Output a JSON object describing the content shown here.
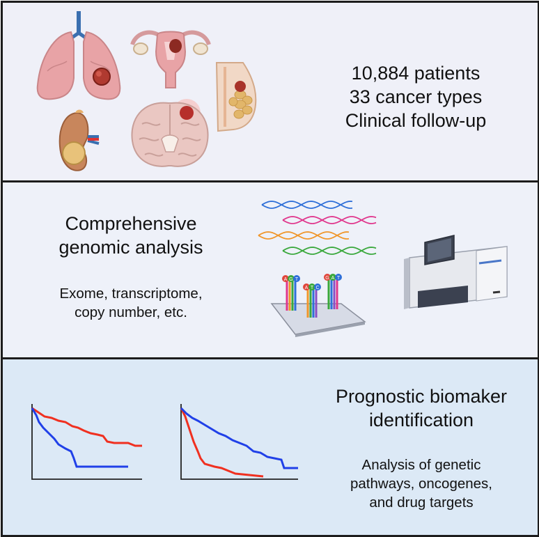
{
  "panel1": {
    "lines": [
      "10,884 patients",
      "33 cancer types",
      "Clinical follow-up"
    ],
    "icons": [
      "lungs-icon",
      "uterus-icon",
      "breast-icon",
      "kidney-icon",
      "brain-icon"
    ]
  },
  "panel2": {
    "title_lines": [
      "Comprehensive",
      "genomic analysis"
    ],
    "sub_lines": [
      "Exome, transcriptome,",
      "copy number, etc."
    ],
    "icons": [
      "dna-helix-icon",
      "sequencing-chip-icon",
      "sequencer-machine-icon"
    ],
    "chip_letters": [
      "A",
      "G",
      "T",
      "A",
      "T",
      "C",
      "G",
      "A",
      "T"
    ]
  },
  "panel3": {
    "title_lines": [
      "Prognostic biomaker",
      "identification"
    ],
    "sub_lines": [
      "Analysis of genetic",
      "pathways, oncogenes,",
      "and drug targets"
    ],
    "icons": [
      "survival-curve-icon"
    ],
    "colors": {
      "high_curve": "#f03020",
      "low_curve": "#2040e8"
    }
  },
  "colors": {
    "border": "#1c1c1c",
    "panel1_bg": "#eff0f8",
    "panel2_bg": "#eef1f9",
    "panel3_bg": "#dce9f6"
  }
}
